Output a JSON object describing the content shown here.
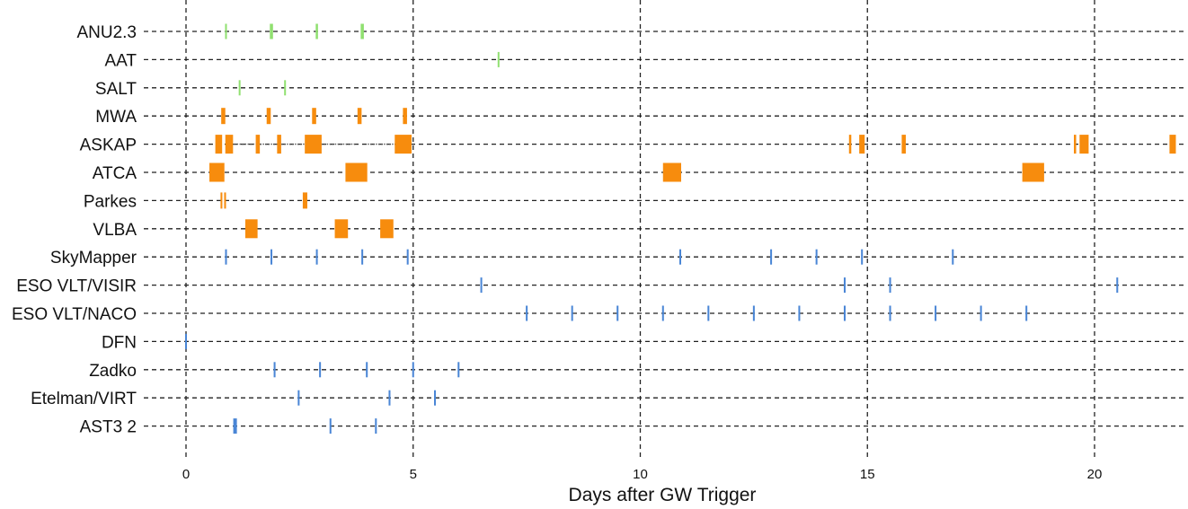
{
  "chart_data": {
    "type": "timeline",
    "xlabel": "Days after GW Trigger",
    "xlim": [
      -0.5,
      22.3
    ],
    "xticks": [
      0,
      5,
      10,
      15,
      20
    ],
    "grid": true,
    "colors": {
      "green": "#90e070",
      "orange": "#f78c0d",
      "blue": "#4a86d6",
      "grid": "#222222",
      "connector": "#555555"
    },
    "rows": [
      {
        "label": "ANU2.3",
        "color": "green",
        "size": "small",
        "marks": [
          {
            "x": 0.88,
            "w": 0.04
          },
          {
            "x": 1.88,
            "w": 0.07
          },
          {
            "x": 2.88,
            "w": 0.05
          },
          {
            "x": 3.88,
            "w": 0.07
          }
        ]
      },
      {
        "label": "AAT",
        "color": "green",
        "size": "small",
        "marks": [
          {
            "x": 6.88,
            "w": 0.03
          }
        ]
      },
      {
        "label": "SALT",
        "color": "green",
        "size": "small",
        "marks": [
          {
            "x": 1.18,
            "w": 0.03
          },
          {
            "x": 2.18,
            "w": 0.03
          }
        ]
      },
      {
        "label": "MWA",
        "color": "orange",
        "size": "medium",
        "marks": [
          {
            "x": 0.82,
            "w": 0.09
          },
          {
            "x": 1.82,
            "w": 0.09
          },
          {
            "x": 2.82,
            "w": 0.09
          },
          {
            "x": 3.82,
            "w": 0.09
          },
          {
            "x": 4.82,
            "w": 0.09
          }
        ]
      },
      {
        "label": "ASKAP",
        "color": "orange",
        "size": "large",
        "connectors": [
          [
            1.0,
            1.55
          ],
          [
            1.63,
            2.0
          ],
          [
            2.1,
            2.62
          ],
          [
            2.98,
            3.75
          ],
          [
            4.0,
            4.6
          ]
        ],
        "marks": [
          {
            "x": 0.72,
            "w": 0.15
          },
          {
            "x": 0.95,
            "w": 0.17
          },
          {
            "x": 1.58,
            "w": 0.09
          },
          {
            "x": 2.05,
            "w": 0.09
          },
          {
            "x": 2.8,
            "w": 0.37
          },
          {
            "x": 4.78,
            "w": 0.37
          },
          {
            "x": 14.62,
            "w": 0.05
          },
          {
            "x": 14.88,
            "w": 0.12
          },
          {
            "x": 15.8,
            "w": 0.09
          },
          {
            "x": 19.57,
            "w": 0.05
          },
          {
            "x": 19.77,
            "w": 0.2
          },
          {
            "x": 21.72,
            "w": 0.14
          }
        ]
      },
      {
        "label": "ATCA",
        "color": "orange",
        "size": "large",
        "marks": [
          {
            "x": 0.68,
            "w": 0.33
          },
          {
            "x": 3.75,
            "w": 0.48
          },
          {
            "x": 10.7,
            "w": 0.4
          },
          {
            "x": 18.65,
            "w": 0.48
          }
        ]
      },
      {
        "label": "Parkes",
        "color": "orange",
        "size": "medium",
        "marks": [
          {
            "x": 0.78,
            "w": 0.04
          },
          {
            "x": 0.86,
            "w": 0.04
          },
          {
            "x": 2.62,
            "w": 0.1
          }
        ]
      },
      {
        "label": "VLBA",
        "color": "orange",
        "size": "large",
        "marks": [
          {
            "x": 1.44,
            "w": 0.27
          },
          {
            "x": 3.42,
            "w": 0.29
          },
          {
            "x": 4.42,
            "w": 0.29
          }
        ]
      },
      {
        "label": "SkyMapper",
        "color": "blue",
        "size": "small",
        "marks": [
          {
            "x": 0.88,
            "w": 0.04
          },
          {
            "x": 1.88,
            "w": 0.04
          },
          {
            "x": 2.88,
            "w": 0.04
          },
          {
            "x": 3.88,
            "w": 0.04
          },
          {
            "x": 4.88,
            "w": 0.04
          },
          {
            "x": 10.88,
            "w": 0.04
          },
          {
            "x": 12.88,
            "w": 0.04
          },
          {
            "x": 13.88,
            "w": 0.04
          },
          {
            "x": 14.88,
            "w": 0.04
          },
          {
            "x": 16.88,
            "w": 0.04
          }
        ]
      },
      {
        "label": "ESO VLT/VISIR",
        "color": "blue",
        "size": "small",
        "marks": [
          {
            "x": 6.5,
            "w": 0.04
          },
          {
            "x": 14.5,
            "w": 0.04
          },
          {
            "x": 15.5,
            "w": 0.04
          },
          {
            "x": 20.5,
            "w": 0.04
          }
        ]
      },
      {
        "label": "ESO VLT/NACO",
        "color": "blue",
        "size": "small",
        "marks": [
          {
            "x": 7.5,
            "w": 0.04
          },
          {
            "x": 8.5,
            "w": 0.04
          },
          {
            "x": 9.5,
            "w": 0.04
          },
          {
            "x": 10.5,
            "w": 0.04
          },
          {
            "x": 11.5,
            "w": 0.04
          },
          {
            "x": 12.5,
            "w": 0.04
          },
          {
            "x": 13.5,
            "w": 0.04
          },
          {
            "x": 14.5,
            "w": 0.04
          },
          {
            "x": 15.5,
            "w": 0.04
          },
          {
            "x": 16.5,
            "w": 0.04
          },
          {
            "x": 17.5,
            "w": 0.04
          },
          {
            "x": 18.5,
            "w": 0.04
          }
        ]
      },
      {
        "label": "DFN",
        "color": "blue",
        "size": "small",
        "marks": [
          {
            "x": 0.0,
            "w": 0.04
          }
        ]
      },
      {
        "label": "Zadko",
        "color": "blue",
        "size": "small",
        "marks": [
          {
            "x": 1.95,
            "w": 0.04
          },
          {
            "x": 2.95,
            "w": 0.04
          },
          {
            "x": 3.98,
            "w": 0.04
          },
          {
            "x": 5.0,
            "w": 0.04
          },
          {
            "x": 6.0,
            "w": 0.04
          }
        ]
      },
      {
        "label": "Etelman/VIRT",
        "color": "blue",
        "size": "small",
        "marks": [
          {
            "x": 2.48,
            "w": 0.04
          },
          {
            "x": 4.48,
            "w": 0.04
          },
          {
            "x": 5.48,
            "w": 0.04
          }
        ]
      },
      {
        "label": "AST3 2",
        "color": "blue",
        "size": "small",
        "marks": [
          {
            "x": 1.08,
            "w": 0.08
          },
          {
            "x": 3.18,
            "w": 0.04
          },
          {
            "x": 4.18,
            "w": 0.04
          }
        ]
      }
    ]
  }
}
